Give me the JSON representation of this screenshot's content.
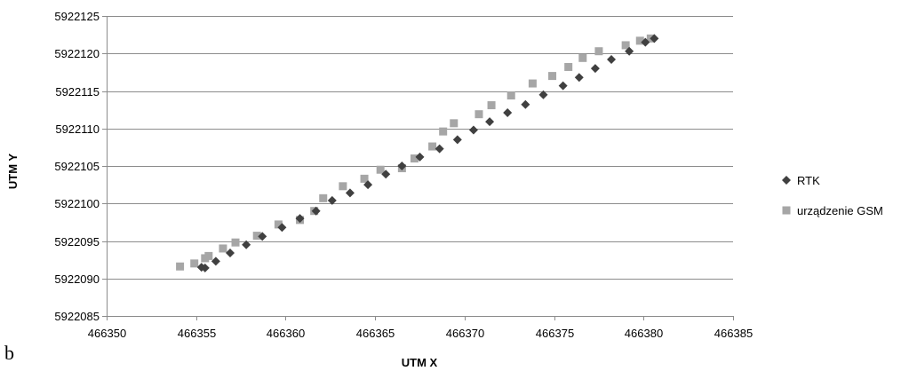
{
  "panel_label": "b",
  "chart_data": {
    "type": "scatter",
    "xlabel": "UTM X",
    "ylabel": "UTM Y",
    "xlim": [
      466350,
      466385
    ],
    "ylim": [
      5922085,
      5922125
    ],
    "xticks": [
      466350,
      466355,
      466360,
      466365,
      466370,
      466375,
      466380,
      466385
    ],
    "yticks": [
      5922085,
      5922090,
      5922095,
      5922100,
      5922105,
      5922110,
      5922115,
      5922120,
      5922125
    ],
    "grid": "horizontal",
    "legend": "right",
    "series": [
      {
        "name": "RTK",
        "marker": "diamond",
        "color": "#404040",
        "points": [
          [
            466355.3,
            5922091.5
          ],
          [
            466355.5,
            5922091.4
          ],
          [
            466356.1,
            5922092.3
          ],
          [
            466356.9,
            5922093.4
          ],
          [
            466357.8,
            5922094.5
          ],
          [
            466358.7,
            5922095.6
          ],
          [
            466359.8,
            5922096.8
          ],
          [
            466360.8,
            5922098.0
          ],
          [
            466361.7,
            5922099.0
          ],
          [
            466362.6,
            5922100.4
          ],
          [
            466363.6,
            5922101.4
          ],
          [
            466364.6,
            5922102.5
          ],
          [
            466365.6,
            5922103.9
          ],
          [
            466366.5,
            5922105.0
          ],
          [
            466367.5,
            5922106.2
          ],
          [
            466368.6,
            5922107.3
          ],
          [
            466369.6,
            5922108.5
          ],
          [
            466370.5,
            5922109.8
          ],
          [
            466371.4,
            5922110.9
          ],
          [
            466372.4,
            5922112.1
          ],
          [
            466373.4,
            5922113.2
          ],
          [
            466374.4,
            5922114.5
          ],
          [
            466375.5,
            5922115.7
          ],
          [
            466376.4,
            5922116.8
          ],
          [
            466377.3,
            5922118.0
          ],
          [
            466378.2,
            5922119.2
          ],
          [
            466379.2,
            5922120.3
          ],
          [
            466380.1,
            5922121.5
          ],
          [
            466380.6,
            5922122.0
          ]
        ]
      },
      {
        "name": "urządzenie GSM",
        "marker": "square",
        "color": "#a6a6a6",
        "points": [
          [
            466354.1,
            5922091.6
          ],
          [
            466354.9,
            5922092.0
          ],
          [
            466355.5,
            5922092.7
          ],
          [
            466355.7,
            5922093.0
          ],
          [
            466356.5,
            5922094.0
          ],
          [
            466357.2,
            5922094.8
          ],
          [
            466358.4,
            5922095.7
          ],
          [
            466359.6,
            5922097.2
          ],
          [
            466360.8,
            5922097.8
          ],
          [
            466361.6,
            5922099.0
          ],
          [
            466362.1,
            5922100.7
          ],
          [
            466363.2,
            5922102.3
          ],
          [
            466364.4,
            5922103.3
          ],
          [
            466365.3,
            5922104.5
          ],
          [
            466366.5,
            5922104.7
          ],
          [
            466367.2,
            5922106.0
          ],
          [
            466368.2,
            5922107.6
          ],
          [
            466368.8,
            5922109.6
          ],
          [
            466369.4,
            5922110.7
          ],
          [
            466370.8,
            5922111.9
          ],
          [
            466371.5,
            5922113.1
          ],
          [
            466372.6,
            5922114.4
          ],
          [
            466373.8,
            5922116.0
          ],
          [
            466374.9,
            5922117.0
          ],
          [
            466375.8,
            5922118.2
          ],
          [
            466376.6,
            5922119.4
          ],
          [
            466377.5,
            5922120.3
          ],
          [
            466379.0,
            5922121.1
          ],
          [
            466379.8,
            5922121.7
          ],
          [
            466380.4,
            5922122.0
          ]
        ]
      }
    ]
  }
}
